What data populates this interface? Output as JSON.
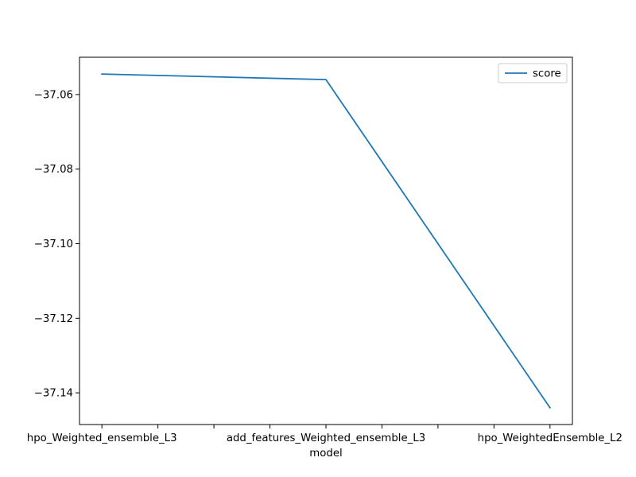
{
  "chart_data": {
    "type": "line",
    "title": "",
    "xlabel": "model",
    "ylabel": "",
    "categories": [
      "hpo_Weighted_ensemble_L3",
      "add_features_Weighted_ensemble_L3",
      "hpo_WeightedEnsemble_L2"
    ],
    "series": [
      {
        "name": "score",
        "color": "#1f77b4",
        "values": [
          -37.0545,
          -37.056,
          -37.144
        ]
      }
    ],
    "x_ticks": [
      0,
      0.5,
      1,
      1.5,
      2,
      2.5,
      3,
      3.5,
      4
    ],
    "x_tick_labels": {
      "0": "hpo_Weighted_ensemble_L3",
      "2": "add_features_Weighted_ensemble_L3",
      "4": "hpo_WeightedEnsemble_L2"
    },
    "category_x": [
      0,
      2,
      4
    ],
    "xlim": [
      -0.2,
      4.2
    ],
    "ylim": [
      -37.1485,
      -37.05
    ],
    "y_ticks": [
      -37.14,
      -37.12,
      -37.1,
      -37.08,
      -37.06
    ],
    "y_tick_labels": [
      "−37.14",
      "−37.12",
      "−37.10",
      "−37.08",
      "−37.06"
    ],
    "grid": false,
    "legend": {
      "position": "upper-right",
      "entries": [
        "score"
      ]
    }
  }
}
